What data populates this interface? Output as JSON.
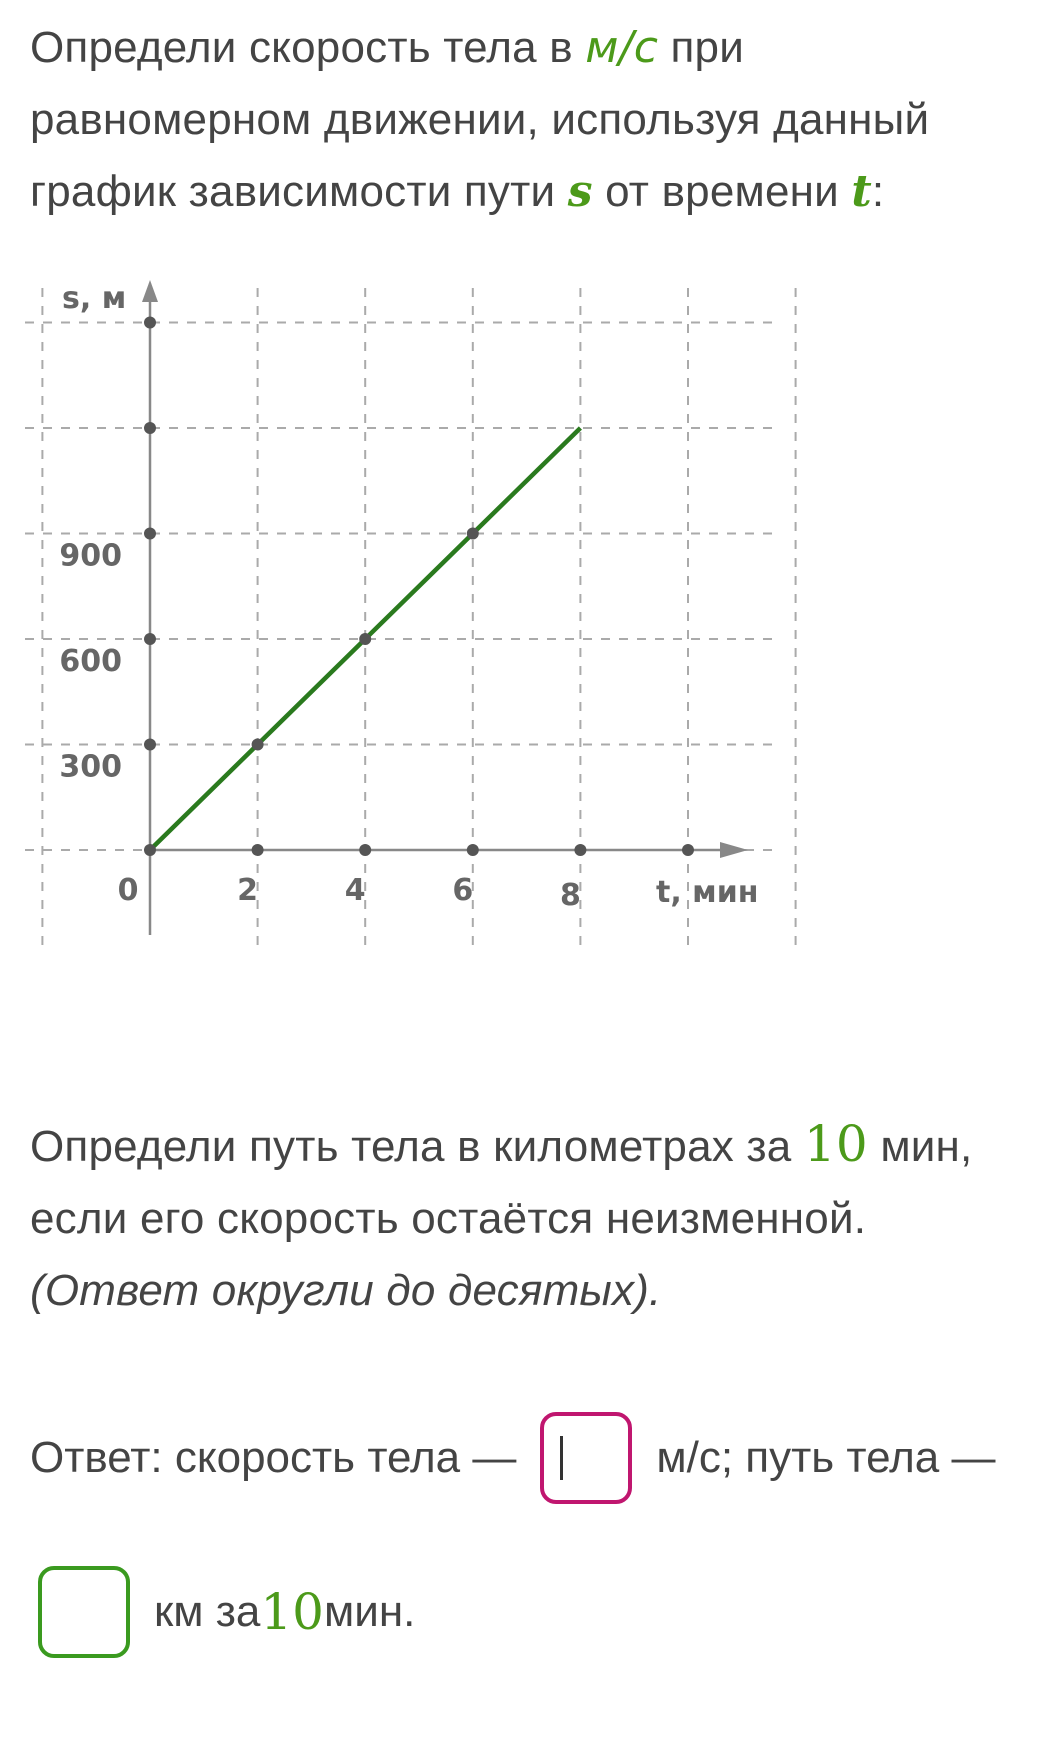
{
  "question1": {
    "text_a": "Определи скорость тела в ",
    "unit": "м/с",
    "text_b": " при равномерном движении, используя данный график зависимости пути ",
    "var_s": "s",
    "text_c": " от времени ",
    "var_t": "t",
    "text_d": ":"
  },
  "chart_data": {
    "type": "line",
    "xlabel": "t, мин",
    "ylabel": "s, м",
    "x_ticks": [
      "0",
      "2",
      "4",
      "6",
      "8"
    ],
    "y_ticks": [
      "300",
      "600",
      "900"
    ],
    "xlim": [
      0,
      12
    ],
    "ylim": [
      0,
      1500
    ],
    "grid": true,
    "series": [
      {
        "x": [
          0,
          2,
          4,
          6,
          8
        ],
        "y": [
          0,
          300,
          600,
          900,
          1200
        ]
      }
    ],
    "marked_points": [
      [
        0,
        0
      ],
      [
        2,
        300
      ],
      [
        4,
        600
      ],
      [
        6,
        900
      ]
    ],
    "axis_dots_x": [
      2,
      4,
      6,
      8,
      10
    ],
    "axis_dots_y": [
      300,
      600,
      900,
      1200,
      1500
    ],
    "colors": {
      "line": "#2a7a1e",
      "grid": "#aaaaaa",
      "axis": "#888888",
      "dot": "#555555"
    }
  },
  "question2": {
    "text_a": "Определи путь тела в километрах за ",
    "num": "10",
    "text_b": " мин, если его скорость остаётся неизменной.",
    "note": "(Ответ округли до десятых)."
  },
  "answer": {
    "prefix": "Ответ: скорость тела —",
    "unit1": "м/с; путь тела —",
    "speed_value": "",
    "distance_value": "",
    "suffix_a": "км за ",
    "num": "10",
    "suffix_b": " мин."
  }
}
